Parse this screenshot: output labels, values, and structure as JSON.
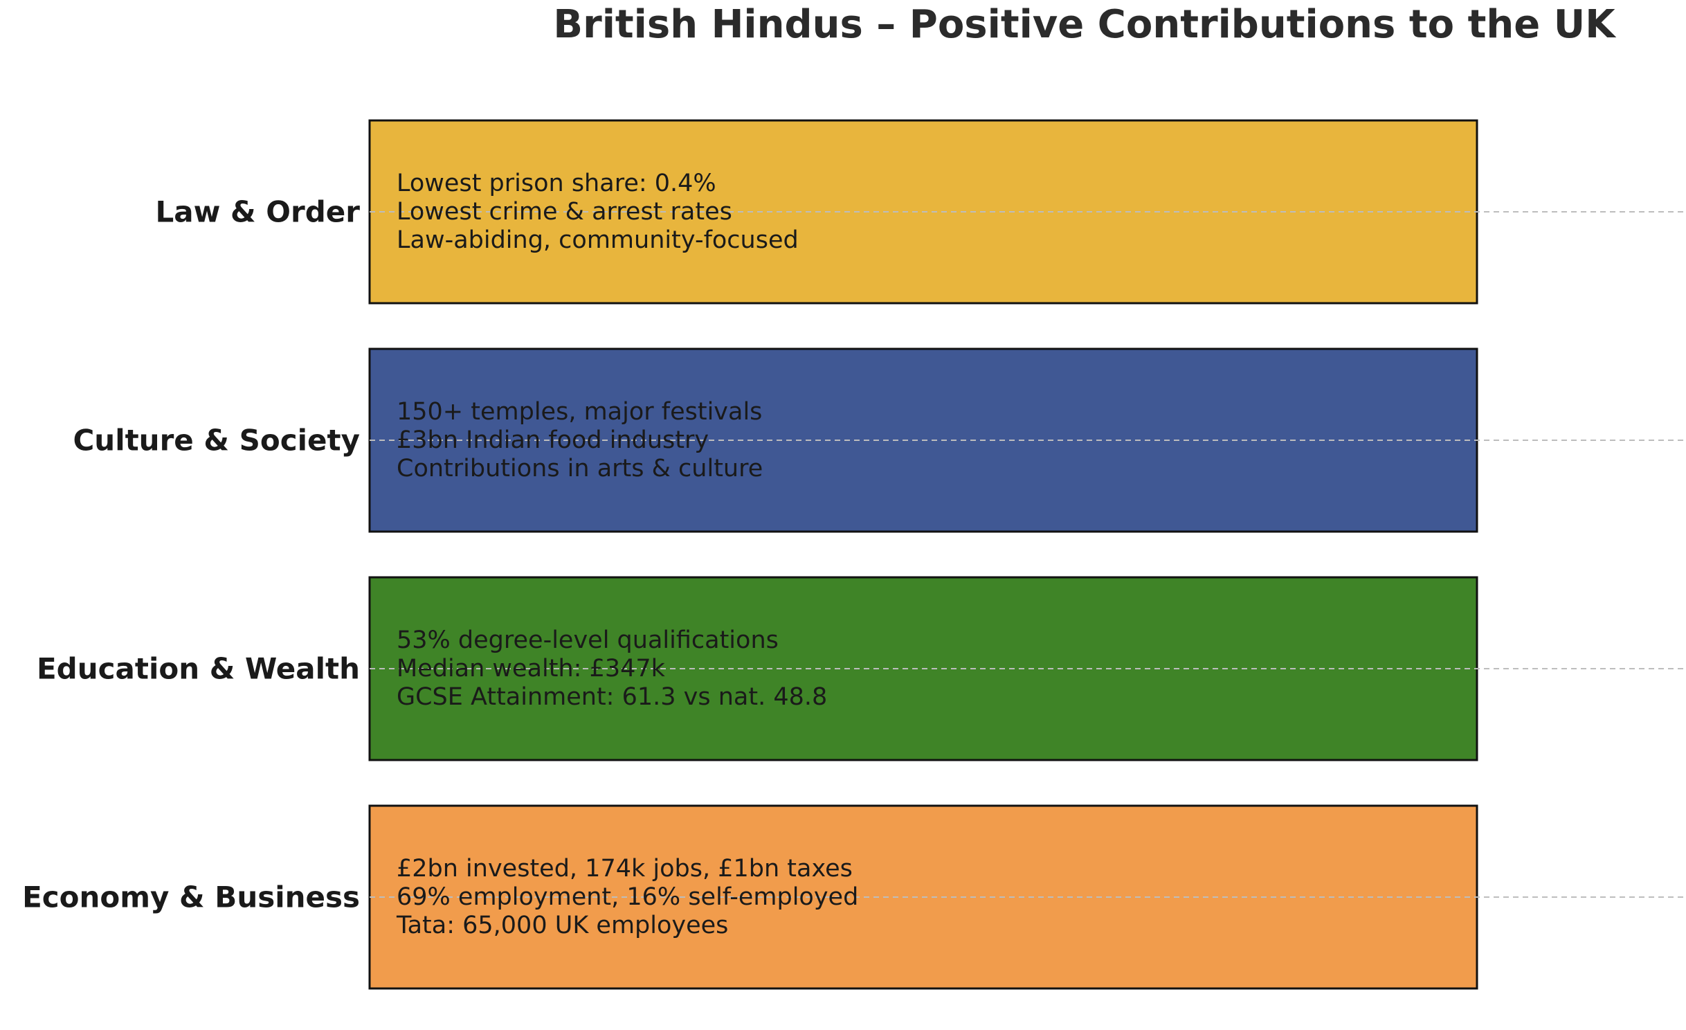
{
  "chart_data": {
    "type": "bar",
    "orientation": "horizontal",
    "title": "British Hindus – Positive Contributions to the UK",
    "xlabel": "",
    "ylabel": "",
    "grid": "horizontal dashed",
    "categories": [
      {
        "label": "Law & Order",
        "color": "#E8B53D",
        "lines": [
          "Lowest prison share: 0.4%",
          "Lowest crime & arrest rates",
          "Law-abiding, community-focused"
        ]
      },
      {
        "label": "Culture & Society",
        "color": "#405894",
        "lines": [
          "150+ temples, major festivals",
          "£3bn Indian food industry",
          "Contributions in arts & culture"
        ]
      },
      {
        "label": "Education & Wealth",
        "color": "#3F8427",
        "lines": [
          "53% degree-level qualifications",
          "Median wealth: £347k",
          "GCSE Attainment: 61.3 vs nat. 48.8"
        ]
      },
      {
        "label": "Economy & Business",
        "color": "#F19C4C",
        "lines": [
          "£2bn invested, 174k jobs, £1bn taxes",
          "69% employment, 16% self-employed",
          "Tata: 65,000 UK employees"
        ]
      }
    ]
  }
}
